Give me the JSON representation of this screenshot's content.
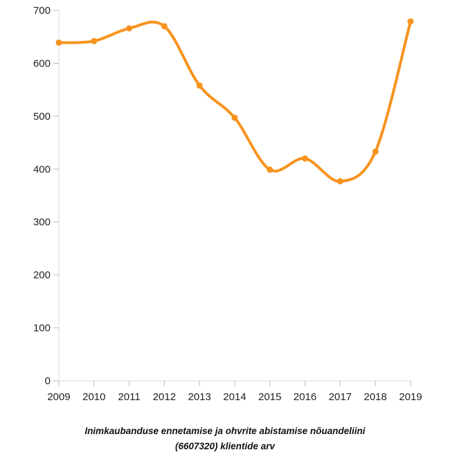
{
  "chart_data": {
    "type": "line",
    "x": [
      "2009",
      "2010",
      "2011",
      "2012",
      "2013",
      "2014",
      "2015",
      "2016",
      "2017",
      "2018",
      "2019"
    ],
    "values": [
      639,
      642,
      666,
      670,
      558,
      497,
      399,
      420,
      377,
      433,
      679
    ],
    "ylim": [
      0,
      700
    ],
    "yticks": [
      0,
      100,
      200,
      300,
      400,
      500,
      600,
      700
    ],
    "grid": false,
    "line_color": "#f7931e",
    "caption_lines": [
      "Inimkaubanduse ennetamise ja ohvrite abistamise nõuandeliini",
      "(6607320) klientide arv"
    ]
  }
}
